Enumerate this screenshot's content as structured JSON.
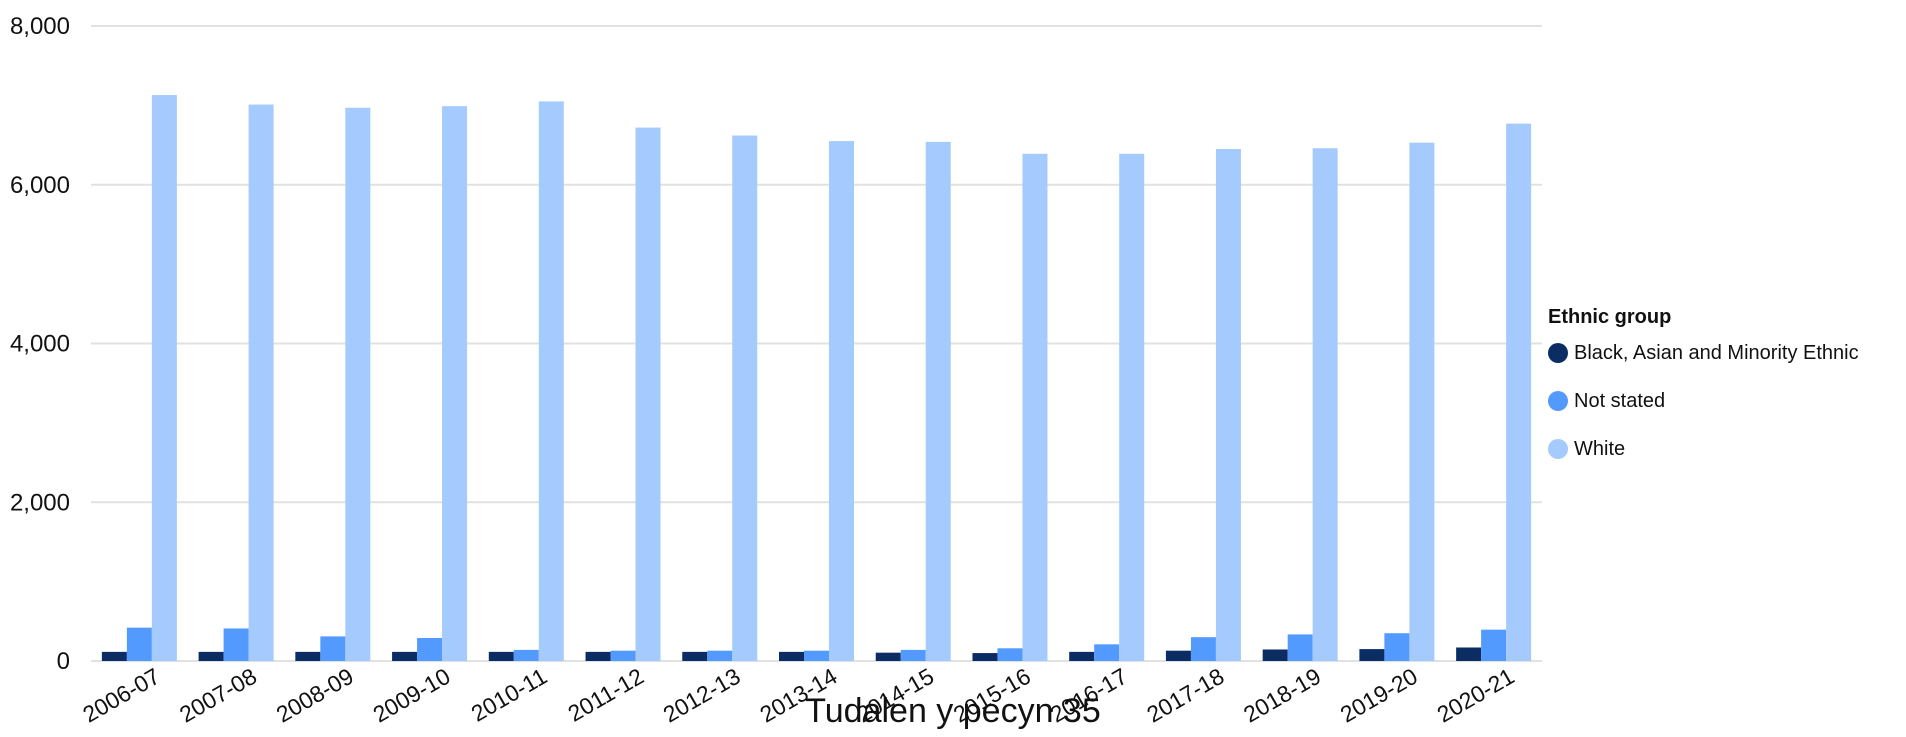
{
  "chart_data": {
    "type": "bar",
    "categories": [
      "2006-07",
      "2007-08",
      "2008-09",
      "2009-10",
      "2010-11",
      "2011-12",
      "2012-13",
      "2013-14",
      "2014-15",
      "2015-16",
      "2016-17",
      "2017-18",
      "2018-19",
      "2019-20",
      "2020-21"
    ],
    "series": [
      {
        "name": "Black, Asian and Minority Ethnic",
        "color": "#0b2d64",
        "values": [
          115,
          115,
          115,
          115,
          115,
          115,
          115,
          115,
          105,
          100,
          115,
          130,
          145,
          150,
          170
        ]
      },
      {
        "name": "Not stated",
        "color": "#539aff",
        "values": [
          420,
          410,
          310,
          290,
          140,
          130,
          130,
          130,
          140,
          160,
          210,
          300,
          335,
          350,
          395
        ]
      },
      {
        "name": "White",
        "color": "#a4cafe",
        "values": [
          7130,
          7010,
          6970,
          6990,
          7050,
          6720,
          6620,
          6550,
          6540,
          6390,
          6390,
          6450,
          6460,
          6530,
          6770
        ]
      }
    ],
    "yticks": [
      "0",
      "2,000",
      "4,000",
      "6,000",
      "8,000"
    ],
    "ylim": [
      0,
      8000
    ],
    "xlabel": "",
    "ylabel": "",
    "grid": true,
    "legend_title": "Ethnic group",
    "legend_position": "right"
  },
  "footer": "Tudalen y pecyn 35"
}
